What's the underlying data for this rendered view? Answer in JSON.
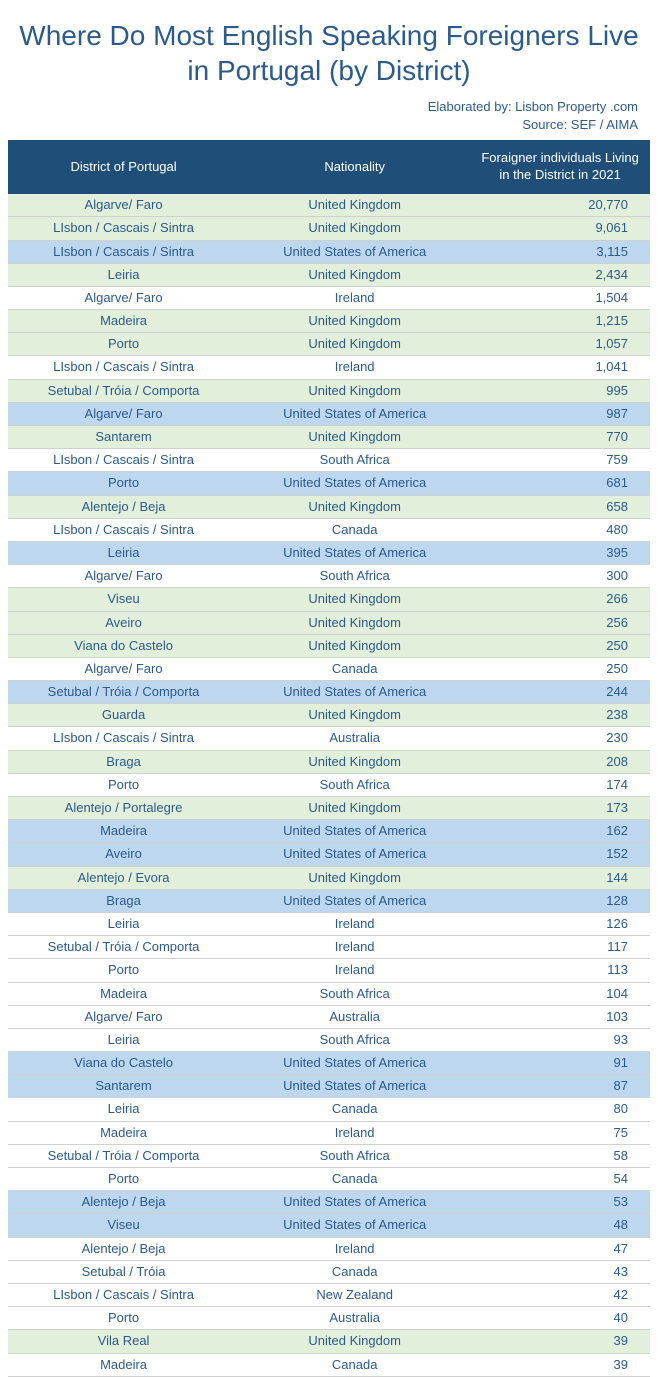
{
  "title": "Where Do Most English Speaking Foreigners Live in Portugal (by District)",
  "attribution_line1": "Elaborated by: Lisbon Property .com",
  "attribution_line2": "Source: SEF / AIMA",
  "colors": {
    "title_color": "#2b5a8c",
    "attribution_color": "#2b5a8c",
    "header_bg": "#1f4e79",
    "header_text": "#ffffff",
    "row_text": "#2b5a8c",
    "row_green": "#e2efda",
    "row_blue": "#bdd7ee",
    "row_white": "#ffffff",
    "row_border": "#d0d0d0"
  },
  "columns": [
    "District of Portugal",
    "Nationality",
    "Foraigner individuals Living in the District in 2021"
  ],
  "rows": [
    {
      "district": "Algarve/ Faro",
      "nationality": "United Kingdom",
      "count": "20,770",
      "bg": "green"
    },
    {
      "district": "LIsbon / Cascais / Sintra",
      "nationality": "United Kingdom",
      "count": "9,061",
      "bg": "green"
    },
    {
      "district": "LIsbon / Cascais / Sintra",
      "nationality": "United States of America",
      "count": "3,115",
      "bg": "blue"
    },
    {
      "district": "Leiria",
      "nationality": "United Kingdom",
      "count": "2,434",
      "bg": "green"
    },
    {
      "district": "Algarve/ Faro",
      "nationality": "Ireland",
      "count": "1,504",
      "bg": "white"
    },
    {
      "district": "Madeira",
      "nationality": "United Kingdom",
      "count": "1,215",
      "bg": "green"
    },
    {
      "district": "Porto",
      "nationality": "United Kingdom",
      "count": "1,057",
      "bg": "green"
    },
    {
      "district": "LIsbon / Cascais / Sintra",
      "nationality": "Ireland",
      "count": "1,041",
      "bg": "white"
    },
    {
      "district": "Setubal / Tróia / Comporta",
      "nationality": "United Kingdom",
      "count": "995",
      "bg": "green"
    },
    {
      "district": "Algarve/ Faro",
      "nationality": "United States of America",
      "count": "987",
      "bg": "blue"
    },
    {
      "district": "Santarem",
      "nationality": "United Kingdom",
      "count": "770",
      "bg": "green"
    },
    {
      "district": "LIsbon / Cascais / Sintra",
      "nationality": "South Africa",
      "count": "759",
      "bg": "white"
    },
    {
      "district": "Porto",
      "nationality": "United States of America",
      "count": "681",
      "bg": "blue"
    },
    {
      "district": "Alentejo / Beja",
      "nationality": "United Kingdom",
      "count": "658",
      "bg": "green"
    },
    {
      "district": "LIsbon / Cascais / Sintra",
      "nationality": "Canada",
      "count": "480",
      "bg": "white"
    },
    {
      "district": "Leiria",
      "nationality": "United States of America",
      "count": "395",
      "bg": "blue"
    },
    {
      "district": "Algarve/ Faro",
      "nationality": "South Africa",
      "count": "300",
      "bg": "white"
    },
    {
      "district": "Viseu",
      "nationality": "United Kingdom",
      "count": "266",
      "bg": "green"
    },
    {
      "district": "Aveiro",
      "nationality": "United Kingdom",
      "count": "256",
      "bg": "green"
    },
    {
      "district": "Viana do Castelo",
      "nationality": "United Kingdom",
      "count": "250",
      "bg": "green"
    },
    {
      "district": "Algarve/ Faro",
      "nationality": "Canada",
      "count": "250",
      "bg": "white"
    },
    {
      "district": "Setubal / Tróia / Comporta",
      "nationality": "United States of America",
      "count": "244",
      "bg": "blue"
    },
    {
      "district": "Guarda",
      "nationality": "United Kingdom",
      "count": "238",
      "bg": "green"
    },
    {
      "district": "LIsbon / Cascais / Sintra",
      "nationality": "Australia",
      "count": "230",
      "bg": "white"
    },
    {
      "district": "Braga",
      "nationality": "United Kingdom",
      "count": "208",
      "bg": "green"
    },
    {
      "district": "Porto",
      "nationality": "South Africa",
      "count": "174",
      "bg": "white"
    },
    {
      "district": "Alentejo / Portalegre",
      "nationality": "United Kingdom",
      "count": "173",
      "bg": "green"
    },
    {
      "district": "Madeira",
      "nationality": "United States of America",
      "count": "162",
      "bg": "blue"
    },
    {
      "district": "Aveiro",
      "nationality": "United States of America",
      "count": "152",
      "bg": "blue"
    },
    {
      "district": "Alentejo / Evora",
      "nationality": "United Kingdom",
      "count": "144",
      "bg": "green"
    },
    {
      "district": "Braga",
      "nationality": "United States of America",
      "count": "128",
      "bg": "blue"
    },
    {
      "district": "Leiria",
      "nationality": "Ireland",
      "count": "126",
      "bg": "white"
    },
    {
      "district": "Setubal / Tróia / Comporta",
      "nationality": "Ireland",
      "count": "117",
      "bg": "white"
    },
    {
      "district": "Porto",
      "nationality": "Ireland",
      "count": "113",
      "bg": "white"
    },
    {
      "district": "Madeira",
      "nationality": "South Africa",
      "count": "104",
      "bg": "white"
    },
    {
      "district": "Algarve/ Faro",
      "nationality": "Australia",
      "count": "103",
      "bg": "white"
    },
    {
      "district": "Leiria",
      "nationality": "South Africa",
      "count": "93",
      "bg": "white"
    },
    {
      "district": "Viana do Castelo",
      "nationality": "United States of America",
      "count": "91",
      "bg": "blue"
    },
    {
      "district": "Santarem",
      "nationality": "United States of America",
      "count": "87",
      "bg": "blue"
    },
    {
      "district": "Leiria",
      "nationality": "Canada",
      "count": "80",
      "bg": "white"
    },
    {
      "district": "Madeira",
      "nationality": "Ireland",
      "count": "75",
      "bg": "white"
    },
    {
      "district": "Setubal / Tróia / Comporta",
      "nationality": "South Africa",
      "count": "58",
      "bg": "white"
    },
    {
      "district": "Porto",
      "nationality": "Canada",
      "count": "54",
      "bg": "white"
    },
    {
      "district": "Alentejo / Beja",
      "nationality": "United States of America",
      "count": "53",
      "bg": "blue"
    },
    {
      "district": "Viseu",
      "nationality": "United States of America",
      "count": "48",
      "bg": "blue"
    },
    {
      "district": "Alentejo / Beja",
      "nationality": "Ireland",
      "count": "47",
      "bg": "white"
    },
    {
      "district": "Setubal / Tróia",
      "nationality": "Canada",
      "count": "43",
      "bg": "white"
    },
    {
      "district": "LIsbon / Cascais / Sintra",
      "nationality": "New Zealand",
      "count": "42",
      "bg": "white"
    },
    {
      "district": "Porto",
      "nationality": "Australia",
      "count": "40",
      "bg": "white"
    },
    {
      "district": "Vila Real",
      "nationality": "United Kingdom",
      "count": "39",
      "bg": "green"
    },
    {
      "district": "Madeira",
      "nationality": "Canada",
      "count": "39",
      "bg": "white"
    }
  ]
}
